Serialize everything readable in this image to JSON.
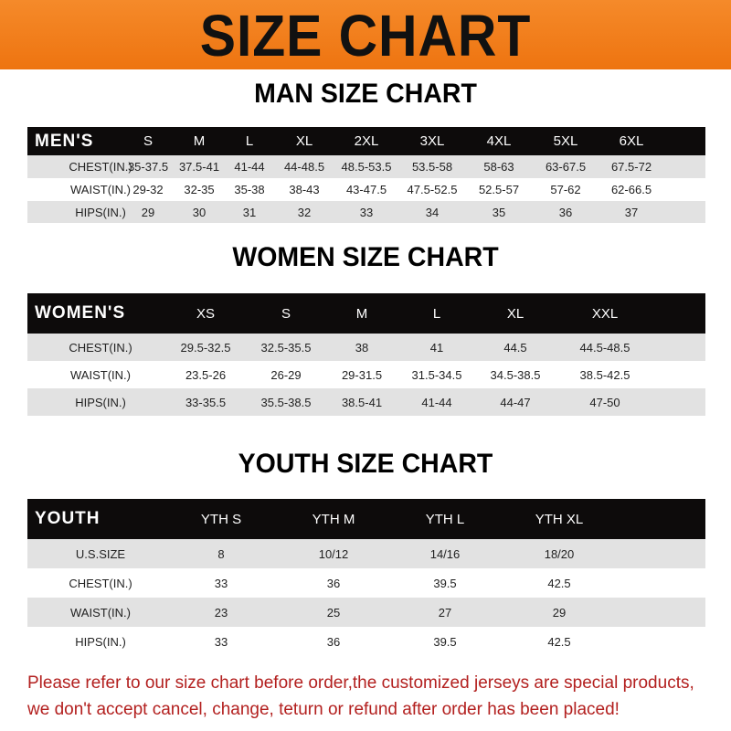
{
  "banner": {
    "title": "SIZE CHART",
    "color": "#f07a1a"
  },
  "men": {
    "title": "MAN SIZE CHART",
    "header": [
      "MEN'S",
      "S",
      "M",
      "L",
      "XL",
      "2XL",
      "3XL",
      "4XL",
      "5XL",
      "6XL"
    ],
    "rows": [
      [
        "CHEST(IN.)",
        "35-37.5",
        "37.5-41",
        "41-44",
        "44-48.5",
        "48.5-53.5",
        "53.5-58",
        "58-63",
        "63-67.5",
        "67.5-72"
      ],
      [
        "WAIST(IN.)",
        "29-32",
        "32-35",
        "35-38",
        "38-43",
        "43-47.5",
        "47.5-52.5",
        "52.5-57",
        "57-62",
        "62-66.5"
      ],
      [
        "HIPS(IN.)",
        "29",
        "30",
        "31",
        "32",
        "33",
        "34",
        "35",
        "36",
        "37"
      ]
    ]
  },
  "women": {
    "title": "WOMEN SIZE CHART",
    "header": [
      "WOMEN'S",
      "XS",
      "S",
      "M",
      "L",
      "XL",
      "XXL"
    ],
    "rows": [
      [
        "CHEST(IN.)",
        "29.5-32.5",
        "32.5-35.5",
        "38",
        "41",
        "44.5",
        "44.5-48.5"
      ],
      [
        "WAIST(IN.)",
        "23.5-26",
        "26-29",
        "29-31.5",
        "31.5-34.5",
        "34.5-38.5",
        "38.5-42.5"
      ],
      [
        "HIPS(IN.)",
        "33-35.5",
        "35.5-38.5",
        "38.5-41",
        "41-44",
        "44-47",
        "47-50"
      ]
    ]
  },
  "youth": {
    "title": "YOUTH SIZE CHART",
    "header": [
      "YOUTH",
      "YTH S",
      "YTH M",
      "YTH L",
      "YTH XL"
    ],
    "rows": [
      [
        "U.S.SIZE",
        "8",
        "10/12",
        "14/16",
        "18/20"
      ],
      [
        "CHEST(IN.)",
        "33",
        "36",
        "39.5",
        "42.5"
      ],
      [
        "WAIST(IN.)",
        "23",
        "25",
        "27",
        "29"
      ],
      [
        "HIPS(IN.)",
        "33",
        "36",
        "39.5",
        "42.5"
      ]
    ]
  },
  "notice": {
    "line1": "Please refer to our size chart before order,the customized jerseys are special products,",
    "line2": "we don't accept cancel, change, teturn or refund after order has been placed!",
    "color": "#b3201f"
  }
}
